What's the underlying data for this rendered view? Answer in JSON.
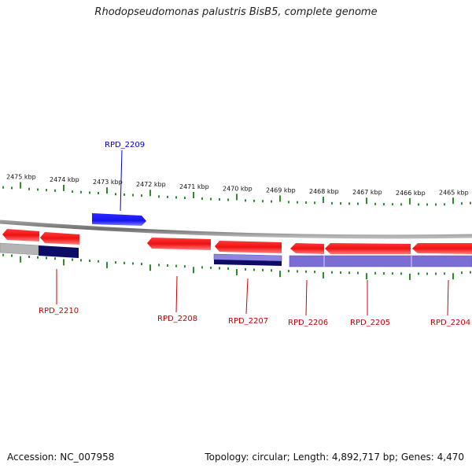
{
  "title": "Rhodopseudomonas palustris BisB5, complete genome",
  "footer": {
    "accession": "Accession: NC_007958",
    "topology": "Topology: circular; Length: 4,892,717 bp; Genes: 4,470"
  },
  "colors": {
    "backbone": "#7a7a7a",
    "tick": "#2e8b2e",
    "gene_red": "#ee1111",
    "gene_blue": "#1515ee",
    "gene_navy": "#0c0c66",
    "gene_lavender": "#7a6ed6",
    "gene_gray": "#b4b4b4",
    "label_red": "#cc0000",
    "label_blue": "#0000cc"
  },
  "kbp_markers": [
    "2475 kbp",
    "2474 kbp",
    "2473 kbp",
    "2472 kbp",
    "2471 kbp",
    "2470 kbp",
    "2469 kbp",
    "2468 kbp",
    "2467 kbp",
    "2466 kbp",
    "2465 kbp"
  ],
  "genes": [
    {
      "name": "RPD_2209",
      "color": "label_blue"
    },
    {
      "name": "RPD_2210",
      "color": "label_red"
    },
    {
      "name": "RPD_2208",
      "color": "label_red"
    },
    {
      "name": "RPD_2207",
      "color": "label_red"
    },
    {
      "name": "RPD_2206",
      "color": "label_red"
    },
    {
      "name": "RPD_2205",
      "color": "label_red"
    },
    {
      "name": "RPD_2204",
      "color": "label_red"
    }
  ]
}
